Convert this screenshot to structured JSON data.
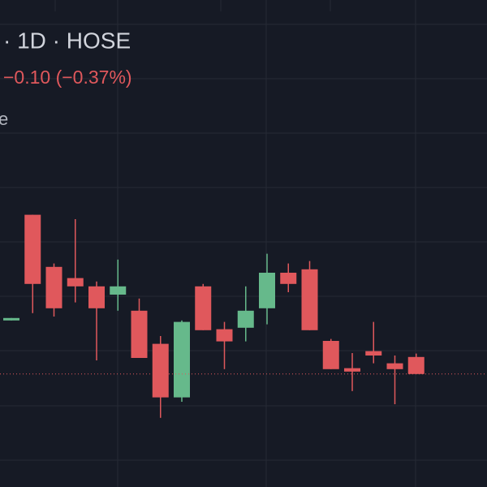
{
  "chart_data": {
    "type": "candlestick",
    "title": "· 1D · HOSE",
    "change": "−0.10 (−0.37%)",
    "legend_fragment": "e",
    "up_color": "#66b98b",
    "down_color": "#e0585c",
    "ylim": [
      24.68,
      34.68
    ],
    "open": [
      28.1,
      30.27,
      29.2,
      28.97,
      28.8,
      28.63,
      28.3,
      27.62,
      26.52,
      28.8,
      27.92,
      27.95,
      28.35,
      29.08,
      29.15,
      27.68,
      27.12,
      27.47,
      27.22,
      27.35
    ],
    "high": [
      28.15,
      30.27,
      29.27,
      30.18,
      28.9,
      29.35,
      28.55,
      27.78,
      28.1,
      28.85,
      28.07,
      28.8,
      29.47,
      29.27,
      29.32,
      27.72,
      27.43,
      28.07,
      27.38,
      27.42
    ],
    "low": [
      28.1,
      28.25,
      28.18,
      28.47,
      27.28,
      28.3,
      27.33,
      26.1,
      26.43,
      27.9,
      27.1,
      27.67,
      28.02,
      28.68,
      27.9,
      27.1,
      26.65,
      27.22,
      26.38,
      27.0
    ],
    "close": [
      28.15,
      28.85,
      28.35,
      28.8,
      28.35,
      28.8,
      27.33,
      26.52,
      28.07,
      27.9,
      27.67,
      28.3,
      29.08,
      28.85,
      27.9,
      27.1,
      27.05,
      27.38,
      27.1,
      27.0
    ]
  }
}
